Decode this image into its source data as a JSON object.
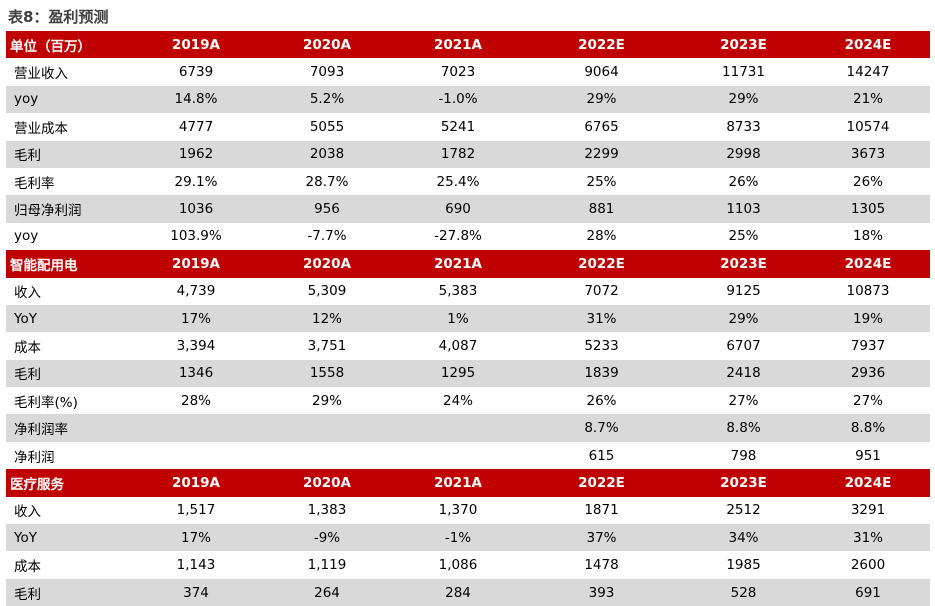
{
  "title": "表8：盈利预测",
  "sections": [
    {
      "header": [
        "单位（百万）",
        "2019A",
        "2020A",
        "2021A",
        "2022E",
        "2023E",
        "2024E"
      ],
      "rows": [
        [
          "营业收入",
          "6739",
          "7093",
          "7023",
          "9064",
          "11731",
          "14247"
        ],
        [
          "yoy",
          "14.8%",
          "5.2%",
          "-1.0%",
          "29%",
          "29%",
          "21%"
        ],
        [
          "营业成本",
          "4777",
          "5055",
          "5241",
          "6765",
          "8733",
          "10574"
        ],
        [
          "毛利",
          "1962",
          "2038",
          "1782",
          "2299",
          "2998",
          "3673"
        ],
        [
          "毛利率",
          "29.1%",
          "28.7%",
          "25.4%",
          "25%",
          "26%",
          "26%"
        ],
        [
          "归母净利润",
          "1036",
          "956",
          "690",
          "881",
          "1103",
          "1305"
        ],
        [
          "yoy",
          "103.9%",
          "-7.7%",
          "-27.8%",
          "28%",
          "25%",
          "18%"
        ]
      ]
    },
    {
      "header": [
        "智能配用电",
        "2019A",
        "2020A",
        "2021A",
        "2022E",
        "2023E",
        "2024E"
      ],
      "rows": [
        [
          "收入",
          "4,739",
          "5,309",
          "5,383",
          "7072",
          "9125",
          "10873"
        ],
        [
          "YoY",
          "17%",
          "12%",
          "1%",
          "31%",
          "29%",
          "19%"
        ],
        [
          "成本",
          "3,394",
          "3,751",
          "4,087",
          "5233",
          "6707",
          "7937"
        ],
        [
          "毛利",
          "1346",
          "1558",
          "1295",
          "1839",
          "2418",
          "2936"
        ],
        [
          "毛利率(%)",
          "28%",
          "29%",
          "24%",
          "26%",
          "27%",
          "27%"
        ],
        [
          "净利润率",
          "",
          "",
          "",
          "8.7%",
          "8.8%",
          "8.8%"
        ],
        [
          "净利润",
          "",
          "",
          "",
          "615",
          "798",
          "951"
        ]
      ]
    },
    {
      "header": [
        "医疗服务",
        "2019A",
        "2020A",
        "2021A",
        "2022E",
        "2023E",
        "2024E"
      ],
      "rows": [
        [
          "收入",
          "1,517",
          "1,383",
          "1,370",
          "1871",
          "2512",
          "3291"
        ],
        [
          "YoY",
          "17%",
          "-9%",
          "-1%",
          "37%",
          "34%",
          "31%"
        ],
        [
          "成本",
          "1,143",
          "1,119",
          "1,086",
          "1478",
          "1985",
          "2600"
        ],
        [
          "毛利",
          "374",
          "264",
          "284",
          "393",
          "528",
          "691"
        ]
      ]
    }
  ]
}
